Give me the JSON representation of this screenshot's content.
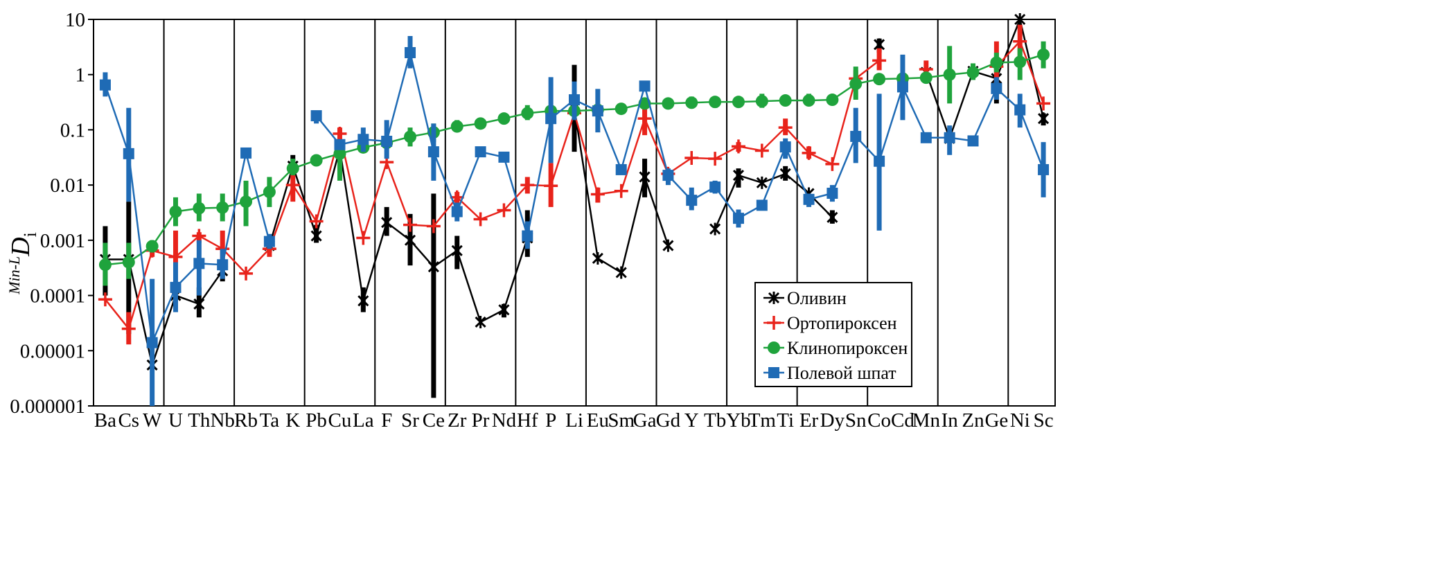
{
  "chart_data": {
    "type": "line",
    "title": "",
    "xlabel": "",
    "ylabel": {
      "superscript": "Min-L",
      "main": "D",
      "subscript": "i"
    },
    "yscale": "log",
    "ylim": [
      1e-06,
      10
    ],
    "yticks": [
      "0.000001",
      "0.00001",
      "0.0001",
      "0.001",
      "0.01",
      "0.1",
      "1",
      "10"
    ],
    "categories": [
      "Ba",
      "Cs",
      "W",
      "U",
      "Th",
      "Nb",
      "Rb",
      "Ta",
      "K",
      "Pb",
      "Cu",
      "La",
      "F",
      "Sr",
      "Ce",
      "Zr",
      "Pr",
      "Nd",
      "Hf",
      "P",
      "Li",
      "Eu",
      "Sm",
      "Ga",
      "Gd",
      "Y",
      "Tb",
      "Yb",
      "Tm",
      "Ti",
      "Er",
      "Dy",
      "Sn",
      "Co",
      "Cd",
      "Mn",
      "In",
      "Zn",
      "Ge",
      "Ni",
      "Sc"
    ],
    "separators_after_index": [
      2,
      5,
      8,
      11,
      14,
      17,
      20,
      23,
      26,
      29,
      32,
      35,
      38
    ],
    "grid": false,
    "legend": {
      "position": "bottom-right",
      "entries": [
        "Оливин",
        "Ортопироксен",
        "Клинопироксен",
        "Полевой шпат"
      ]
    },
    "series": [
      {
        "name": "Оливин",
        "color": "#000000",
        "marker": "asterisk",
        "values": [
          0.00045,
          0.00045,
          5.5e-06,
          0.0001,
          7e-05,
          0.00028,
          null,
          0.0008,
          0.022,
          0.0012,
          0.045,
          8e-05,
          0.0021,
          0.001,
          0.00033,
          0.00065,
          3.3e-05,
          5.5e-05,
          0.0011,
          null,
          0.25,
          0.00047,
          0.00026,
          0.014,
          0.0008,
          null,
          0.0016,
          0.015,
          0.011,
          0.016,
          0.007,
          0.0026,
          null,
          3.5,
          null,
          1.1,
          0.07,
          1.15,
          0.85,
          10,
          0.16
        ],
        "errors": [
          [
            0.0001,
            0.0018
          ],
          [
            2e-05,
            0.005
          ],
          null,
          [
            6e-05,
            0.00015
          ],
          [
            4e-05,
            0.00014
          ],
          [
            0.00018,
            0.0004
          ],
          null,
          [
            0.0006,
            0.0012
          ],
          [
            0.015,
            0.035
          ],
          [
            0.0009,
            0.0019
          ],
          null,
          [
            5e-05,
            0.00014
          ],
          [
            0.0012,
            0.004
          ],
          [
            0.00035,
            0.003
          ],
          [
            1.4e-06,
            0.007
          ],
          [
            0.0003,
            0.0012
          ],
          null,
          [
            4e-05,
            7e-05
          ],
          [
            0.0005,
            0.0035
          ],
          null,
          [
            0.04,
            1.5
          ],
          null,
          null,
          [
            0.006,
            0.03
          ],
          null,
          null,
          null,
          [
            0.009,
            0.02
          ],
          null,
          [
            0.012,
            0.022
          ],
          null,
          [
            0.002,
            0.0035
          ],
          null,
          [
            2.5,
            4.5
          ],
          null,
          null,
          null,
          null,
          [
            0.3,
            1.8
          ],
          null,
          [
            0.12,
            0.2
          ]
        ]
      },
      {
        "name": "Ортопироксен",
        "color": "#e8231b",
        "marker": "plus",
        "values": [
          8.5e-05,
          2.5e-05,
          0.00065,
          0.0005,
          0.0012,
          0.0007,
          0.00025,
          0.0007,
          0.01,
          0.0022,
          0.085,
          0.0011,
          0.026,
          0.0019,
          0.0018,
          0.006,
          0.0024,
          0.0035,
          0.01,
          0.0097,
          0.2,
          0.0068,
          0.0078,
          0.16,
          0.016,
          0.031,
          0.03,
          0.05,
          0.042,
          0.11,
          0.038,
          0.024,
          0.85,
          1.8,
          null,
          1.25,
          null,
          null,
          1.4,
          4,
          0.3
        ],
        "errors": [
          null,
          [
            1.3e-05,
            5e-05
          ],
          [
            0.0005,
            0.0009
          ],
          [
            0.0001,
            0.0015
          ],
          [
            0.0009,
            0.0014
          ],
          [
            0.0004,
            0.0015
          ],
          null,
          [
            0.0005,
            0.001
          ],
          [
            0.005,
            0.018
          ],
          null,
          [
            0.06,
            0.11
          ],
          null,
          null,
          null,
          null,
          [
            0.0045,
            0.0075
          ],
          null,
          null,
          [
            0.007,
            0.014
          ],
          [
            0.004,
            0.025
          ],
          null,
          [
            0.0048,
            0.009
          ],
          null,
          [
            0.08,
            0.25
          ],
          null,
          null,
          null,
          [
            0.04,
            0.06
          ],
          null,
          [
            0.08,
            0.16
          ],
          [
            0.03,
            0.05
          ],
          null,
          [
            0.6,
            1.2
          ],
          [
            1.2,
            3
          ],
          null,
          [
            0.9,
            1.8
          ],
          null,
          null,
          [
            0.5,
            4
          ],
          [
            1.5,
            8
          ],
          null
        ]
      },
      {
        "name": "Клинопироксен",
        "color": "#1fa33c",
        "marker": "circle",
        "values": [
          0.00036,
          0.0004,
          0.00078,
          0.0033,
          0.0038,
          0.0039,
          0.005,
          0.0075,
          0.02,
          0.028,
          0.037,
          0.048,
          0.058,
          0.075,
          0.09,
          0.115,
          0.13,
          0.16,
          0.2,
          0.22,
          0.22,
          0.23,
          0.24,
          0.3,
          0.3,
          0.31,
          0.32,
          0.32,
          0.33,
          0.34,
          0.34,
          0.35,
          0.68,
          0.83,
          0.85,
          0.88,
          1,
          1.1,
          1.65,
          1.7,
          2.3
        ],
        "errors": [
          [
            0.00015,
            0.0009
          ],
          [
            0.0002,
            0.0009
          ],
          [
            0.0006,
            0.001
          ],
          [
            0.0018,
            0.006
          ],
          [
            0.0022,
            0.007
          ],
          [
            0.0022,
            0.007
          ],
          [
            0.0018,
            0.012
          ],
          [
            0.004,
            0.014
          ],
          [
            0.015,
            0.03
          ],
          null,
          [
            0.012,
            0.06
          ],
          null,
          null,
          [
            0.05,
            0.11
          ],
          [
            0.06,
            0.13
          ],
          [
            0.09,
            0.15
          ],
          null,
          null,
          [
            0.15,
            0.28
          ],
          null,
          null,
          null,
          null,
          null,
          null,
          [
            0.25,
            0.4
          ],
          [
            0.25,
            0.4
          ],
          null,
          [
            0.25,
            0.45
          ],
          null,
          [
            0.27,
            0.45
          ],
          null,
          [
            0.35,
            1.4
          ],
          null,
          null,
          [
            0.7,
            1.1
          ],
          [
            0.3,
            3.3
          ],
          [
            0.8,
            1.6
          ],
          [
            1.1,
            2.5
          ],
          [
            0.8,
            3
          ],
          [
            1.3,
            4
          ]
        ]
      },
      {
        "name": "Полевой шпат",
        "color": "#1f6bb5",
        "marker": "square",
        "values": [
          0.65,
          0.037,
          1.4e-05,
          0.00014,
          0.00038,
          0.00036,
          0.038,
          0.00095,
          null,
          0.18,
          0.054,
          0.067,
          0.062,
          2.5,
          0.04,
          0.0033,
          0.04,
          0.032,
          0.0012,
          0.16,
          0.35,
          0.22,
          0.019,
          0.62,
          0.015,
          0.0053,
          0.0092,
          0.0025,
          0.0043,
          0.049,
          0.0055,
          0.0071,
          0.076,
          0.027,
          0.6,
          0.072,
          0.072,
          0.063,
          0.56,
          0.23,
          0.019
        ],
        "errors": [
          [
            0.4,
            1.1
          ],
          [
            0.005,
            0.25
          ],
          [
            1e-06,
            0.0002
          ],
          [
            5e-05,
            0.0004
          ],
          [
            0.0001,
            0.001
          ],
          [
            0.0002,
            0.0007
          ],
          null,
          [
            0.0007,
            0.0013
          ],
          null,
          [
            0.13,
            0.22
          ],
          null,
          [
            0.04,
            0.11
          ],
          [
            0.03,
            0.15
          ],
          [
            1.3,
            5
          ],
          [
            0.012,
            0.13
          ],
          [
            0.0022,
            0.0048
          ],
          null,
          null,
          [
            0.0007,
            0.0022
          ],
          [
            0.025,
            0.9
          ],
          [
            0.15,
            0.75
          ],
          [
            0.09,
            0.55
          ],
          null,
          null,
          [
            0.01,
            0.02
          ],
          [
            0.0035,
            0.009
          ],
          [
            0.007,
            0.012
          ],
          [
            0.0017,
            0.0036
          ],
          null,
          [
            0.03,
            0.07
          ],
          [
            0.004,
            0.007
          ],
          [
            0.005,
            0.01
          ],
          [
            0.025,
            0.25
          ],
          [
            0.0015,
            0.45
          ],
          [
            0.15,
            2.3
          ],
          null,
          [
            0.035,
            0.12
          ],
          null,
          [
            0.35,
            0.9
          ],
          [
            0.11,
            0.45
          ],
          [
            0.006,
            0.06
          ]
        ]
      }
    ]
  }
}
